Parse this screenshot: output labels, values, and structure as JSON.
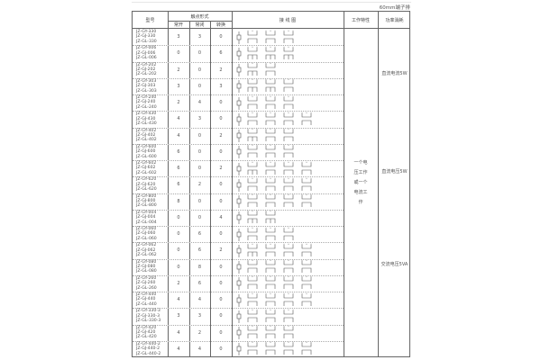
{
  "caption": "60mm端子排",
  "headers": {
    "model": "型号",
    "contact_form": "触点形式",
    "no": "常开",
    "nc": "常闭",
    "changeover": "转换",
    "wiring": "接 线 图",
    "work": "工作特性",
    "power": "功率消耗"
  },
  "work_characteristic": [
    "一个电",
    "压工作",
    "或一个",
    "电流工",
    "作"
  ],
  "power_groups": [
    "直流电流5W",
    "直流电压5W",
    "交流电压5VA"
  ],
  "rows": [
    {
      "models": [
        "JZ-GY-330",
        "JZ-GJ-330",
        "JZ-GL-330"
      ],
      "no": "3",
      "nc": "3",
      "co": "0"
    },
    {
      "models": [
        "JZ-GY-006",
        "JZ-GJ-006",
        "JZ-GL-006"
      ],
      "no": "0",
      "nc": "0",
      "co": "6"
    },
    {
      "models": [
        "JZ-GY-202",
        "JZ-GJ-202",
        "JZ-GL-202"
      ],
      "no": "2",
      "nc": "0",
      "co": "2"
    },
    {
      "models": [
        "JZ-GY-303",
        "JZ-GJ-303",
        "JZ-GL-303"
      ],
      "no": "3",
      "nc": "0",
      "co": "3"
    },
    {
      "models": [
        "JZ-GY-240",
        "JZ-GJ-240",
        "JZ-GL-240"
      ],
      "no": "2",
      "nc": "4",
      "co": "0"
    },
    {
      "models": [
        "JZ-GY-430",
        "JZ-GJ-430",
        "JZ-GL-430"
      ],
      "no": "4",
      "nc": "3",
      "co": "0"
    },
    {
      "models": [
        "JZ-GY-402",
        "JZ-GJ-402",
        "JZ-GL-402"
      ],
      "no": "4",
      "nc": "0",
      "co": "2"
    },
    {
      "models": [
        "JZ-GY-600",
        "JZ-GJ-600",
        "JZ-GL-600"
      ],
      "no": "6",
      "nc": "0",
      "co": "0"
    },
    {
      "models": [
        "JZ-GY-602",
        "JZ-GJ-602",
        "JZ-GL-602"
      ],
      "no": "6",
      "nc": "0",
      "co": "2"
    },
    {
      "models": [
        "JZ-GY-620",
        "JZ-GJ-620",
        "JZ-GL-620"
      ],
      "no": "6",
      "nc": "2",
      "co": "0"
    },
    {
      "models": [
        "JZ-GY-800",
        "JZ-GJ-800",
        "JZ-GL-800"
      ],
      "no": "8",
      "nc": "0",
      "co": "0"
    },
    {
      "models": [
        "JZ-GY-004",
        "JZ-GJ-004",
        "JZ-GL-004"
      ],
      "no": "0",
      "nc": "0",
      "co": "4"
    },
    {
      "models": [
        "JZ-GY-060",
        "JZ-GJ-060",
        "JZ-GL-060"
      ],
      "no": "0",
      "nc": "6",
      "co": "0"
    },
    {
      "models": [
        "JZ-GY-062",
        "JZ-GJ-062",
        "JZ-GL-062"
      ],
      "no": "0",
      "nc": "6",
      "co": "2"
    },
    {
      "models": [
        "JZ-GY-080",
        "JZ-GJ-080",
        "JZ-GL-080"
      ],
      "no": "0",
      "nc": "8",
      "co": "0"
    },
    {
      "models": [
        "JZ-GY-260",
        "JZ-GJ-260",
        "JZ-GL-260"
      ],
      "no": "2",
      "nc": "6",
      "co": "0"
    },
    {
      "models": [
        "JZ-GY-440",
        "JZ-GJ-440",
        "JZ-GL-440"
      ],
      "no": "4",
      "nc": "4",
      "co": "0"
    },
    {
      "models": [
        "JZ-GY-330-3",
        "JZ-GJ-330-3",
        "JZ-GL-330-3"
      ],
      "no": "3",
      "nc": "3",
      "co": "0"
    },
    {
      "models": [
        "JZ-GY-420",
        "JZ-GJ-420",
        "JZ-GL-420"
      ],
      "no": "4",
      "nc": "2",
      "co": "0"
    },
    {
      "models": [
        "JZ-GY-440-2",
        "JZ-GJ-440-2",
        "JZ-GL-440-2"
      ],
      "no": "4",
      "nc": "4",
      "co": "0"
    }
  ]
}
